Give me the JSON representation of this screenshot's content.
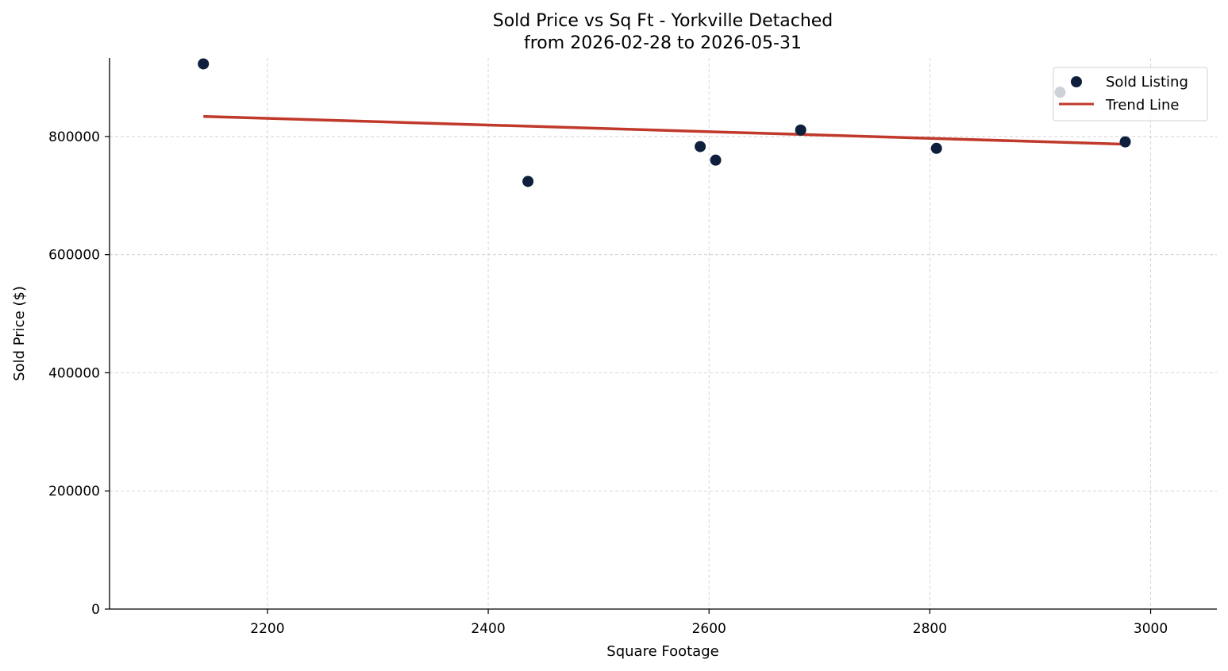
{
  "colors": {
    "point": "#0d1f3c",
    "trend": "#c0392b",
    "axis": "#000000",
    "grid": "#cccccc"
  },
  "chart_data": {
    "type": "scatter",
    "title": "Sold Price vs Sq Ft - Yorkville Detached",
    "subtitle": "from 2026-02-28 to 2026-05-31",
    "xlabel": "Square Footage",
    "ylabel": "Sold Price ($)",
    "xlim": [
      2057,
      3060
    ],
    "ylim": [
      0,
      933000
    ],
    "x_ticks": [
      2200,
      2400,
      2600,
      2800,
      3000
    ],
    "x_tick_labels": [
      "2200",
      "2400",
      "2600",
      "2800",
      "3000"
    ],
    "y_ticks": [
      0,
      200000,
      400000,
      600000,
      800000
    ],
    "y_tick_labels": [
      "0",
      "200000",
      "400000",
      "600000",
      "800000"
    ],
    "grid": true,
    "legend": {
      "placement": "top-right",
      "entries": [
        "Sold Listing",
        "Trend Line"
      ]
    },
    "series": [
      {
        "name": "Sold Listing",
        "kind": "scatter",
        "points": [
          {
            "x": 2142,
            "y": 923000
          },
          {
            "x": 2436,
            "y": 724000
          },
          {
            "x": 2592,
            "y": 783000
          },
          {
            "x": 2606,
            "y": 760000
          },
          {
            "x": 2683,
            "y": 811000
          },
          {
            "x": 2806,
            "y": 780000
          },
          {
            "x": 2918,
            "y": 875000
          },
          {
            "x": 2977,
            "y": 791000
          }
        ]
      },
      {
        "name": "Trend Line",
        "kind": "line",
        "points": [
          {
            "x": 2142,
            "y": 834000
          },
          {
            "x": 2977,
            "y": 787000
          }
        ]
      }
    ]
  }
}
